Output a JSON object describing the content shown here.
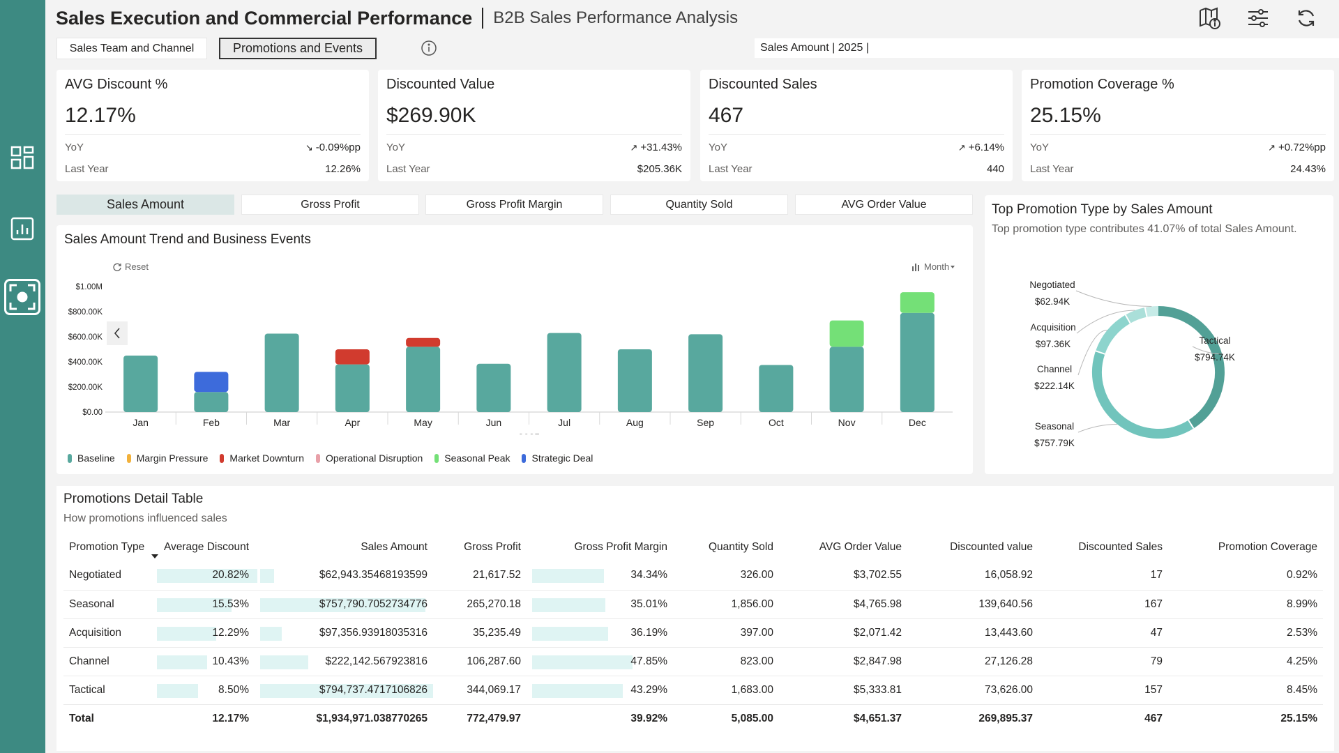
{
  "header": {
    "title": "Sales Execution and Commercial Performance",
    "subtitle": "B2B Sales Performance Analysis"
  },
  "nav": {
    "items": [
      "overview-icon",
      "report-icon",
      "focus-icon"
    ]
  },
  "top_icons": [
    "page-info-icon",
    "filter-settings-icon",
    "refresh-icon"
  ],
  "tabs": [
    {
      "label": "Sales Team and Channel",
      "active": false
    },
    {
      "label": "Promotions and Events",
      "active": true
    }
  ],
  "filter_text": "Sales Amount | 2025 |",
  "kpis": [
    {
      "name": "AVG Discount %",
      "value": "12.17%",
      "yoy_label": "YoY",
      "yoy": "-0.09%pp",
      "trend": "down",
      "ly_label": "Last Year",
      "ly": "12.26%"
    },
    {
      "name": "Discounted Value",
      "value": "$269.90K",
      "yoy_label": "YoY",
      "yoy": "+31.43%",
      "trend": "up",
      "ly_label": "Last Year",
      "ly": "$205.36K"
    },
    {
      "name": "Discounted Sales",
      "value": "467",
      "yoy_label": "YoY",
      "yoy": "+6.14%",
      "trend": "up",
      "ly_label": "Last Year",
      "ly": "440"
    },
    {
      "name": "Promotion Coverage %",
      "value": "25.15%",
      "yoy_label": "YoY",
      "yoy": "+0.72%pp",
      "trend": "up",
      "ly_label": "Last Year",
      "ly": "24.43%"
    }
  ],
  "metric_tabs": [
    {
      "label": "Sales Amount",
      "active": true
    },
    {
      "label": "Gross Profit",
      "active": false
    },
    {
      "label": "Gross Profit Margin",
      "active": false
    },
    {
      "label": "Quantity Sold",
      "active": false
    },
    {
      "label": "AVG Order Value",
      "active": false
    }
  ],
  "trend_chart": {
    "title": "Sales Amount Trend and Business Events",
    "reset_label": "Reset",
    "granularity_label": "Month",
    "year_label": "2025"
  },
  "donut_chart": {
    "title": "Top Promotion Type by Sales Amount",
    "subtitle": "Top promotion type contributes 41.07% of total Sales Amount."
  },
  "chart_data": [
    {
      "type": "bar",
      "stacked": true,
      "title": "Sales Amount Trend and Business Events",
      "xlabel": "2025",
      "categories": [
        "Jan",
        "Feb",
        "Mar",
        "Apr",
        "May",
        "Jun",
        "Jul",
        "Aug",
        "Sep",
        "Oct",
        "Nov",
        "Dec"
      ],
      "ylim": [
        0,
        1000000
      ],
      "yticks": [
        "$0.00",
        "$200.00K",
        "$400.00K",
        "$600.00K",
        "$800.00K",
        "$1.00M"
      ],
      "yticks_values": [
        0,
        200000,
        400000,
        600000,
        800000,
        1000000
      ],
      "series": [
        {
          "name": "Baseline",
          "color": "#58a89e",
          "values": [
            450000,
            160000,
            625000,
            380000,
            520000,
            385000,
            630000,
            500000,
            620000,
            375000,
            520000,
            790000
          ]
        },
        {
          "name": "Margin Pressure",
          "color": "#f2b13b",
          "values": [
            0,
            0,
            0,
            0,
            0,
            0,
            0,
            0,
            0,
            0,
            0,
            0
          ]
        },
        {
          "name": "Market Downturn",
          "color": "#d13b2e",
          "values": [
            0,
            0,
            0,
            120000,
            70000,
            0,
            0,
            0,
            0,
            0,
            0,
            0
          ]
        },
        {
          "name": "Operational Disruption",
          "color": "#e8a0a8",
          "values": [
            0,
            0,
            0,
            0,
            0,
            0,
            0,
            0,
            0,
            0,
            0,
            0
          ]
        },
        {
          "name": "Seasonal Peak",
          "color": "#74e077",
          "values": [
            0,
            0,
            0,
            0,
            0,
            0,
            0,
            0,
            0,
            0,
            210000,
            165000
          ]
        },
        {
          "name": "Strategic Deal",
          "color": "#3d6bdb",
          "values": [
            0,
            160000,
            0,
            0,
            0,
            0,
            0,
            0,
            0,
            0,
            0,
            0
          ]
        }
      ],
      "legend": "bottom-left"
    },
    {
      "type": "pie",
      "donut": true,
      "title": "Top Promotion Type by Sales Amount",
      "categories": [
        "Tactical",
        "Seasonal",
        "Channel",
        "Acquisition",
        "Negotiated"
      ],
      "values": [
        794740,
        757790,
        222140,
        97360,
        62940
      ],
      "labels": [
        "$794.74K",
        "$757.79K",
        "$222.14K",
        "$97.36K",
        "$62.94K"
      ],
      "colors": [
        "#52a096",
        "#71c4bc",
        "#8dd4cd",
        "#aadfd9",
        "#c6ebe7"
      ]
    }
  ],
  "table": {
    "title": "Promotions Detail Table",
    "subtitle": "How promotions influenced sales",
    "headers": [
      "Promotion Type",
      "Average Discount",
      "Sales Amount",
      "Gross Profit",
      "Gross Profit Margin",
      "Quantity Sold",
      "AVG Order Value",
      "Discounted value",
      "Discounted Sales",
      "Promotion Coverage"
    ],
    "rows": [
      {
        "cells": [
          "Negotiated",
          "20.82%",
          "$62,943.35468193599",
          "21,617.52",
          "34.34%",
          "326.00",
          "$3,702.55",
          "16,058.92",
          "17",
          "0.92%"
        ],
        "disc_frac": 1.0,
        "sales_frac": 0.079,
        "gpm_frac": 0.718
      },
      {
        "cells": [
          "Seasonal",
          "15.53%",
          "$757,790.7052734776",
          "265,270.18",
          "35.01%",
          "1,856.00",
          "$4,765.98",
          "139,640.56",
          "167",
          "8.99%"
        ],
        "disc_frac": 0.746,
        "sales_frac": 0.954,
        "gpm_frac": 0.732
      },
      {
        "cells": [
          "Acquisition",
          "12.29%",
          "$97,356.93918035316",
          "35,235.49",
          "36.19%",
          "397.00",
          "$2,071.42",
          "13,443.60",
          "47",
          "2.53%"
        ],
        "disc_frac": 0.59,
        "sales_frac": 0.123,
        "gpm_frac": 0.756
      },
      {
        "cells": [
          "Channel",
          "10.43%",
          "$222,142.567923816",
          "106,287.60",
          "47.85%",
          "823.00",
          "$2,847.98",
          "27,126.28",
          "79",
          "4.25%"
        ],
        "disc_frac": 0.501,
        "sales_frac": 0.28,
        "gpm_frac": 1.0
      },
      {
        "cells": [
          "Tactical",
          "8.50%",
          "$794,737.4717106826",
          "344,069.17",
          "43.29%",
          "1,683.00",
          "$5,333.81",
          "73,626.00",
          "157",
          "8.45%"
        ],
        "disc_frac": 0.408,
        "sales_frac": 1.0,
        "gpm_frac": 0.905
      }
    ],
    "total": [
      "Total",
      "12.17%",
      "$1,934,971.038770265",
      "772,479.97",
      "39.92%",
      "5,085.00",
      "$4,651.37",
      "269,895.37",
      "467",
      "25.15%"
    ]
  }
}
